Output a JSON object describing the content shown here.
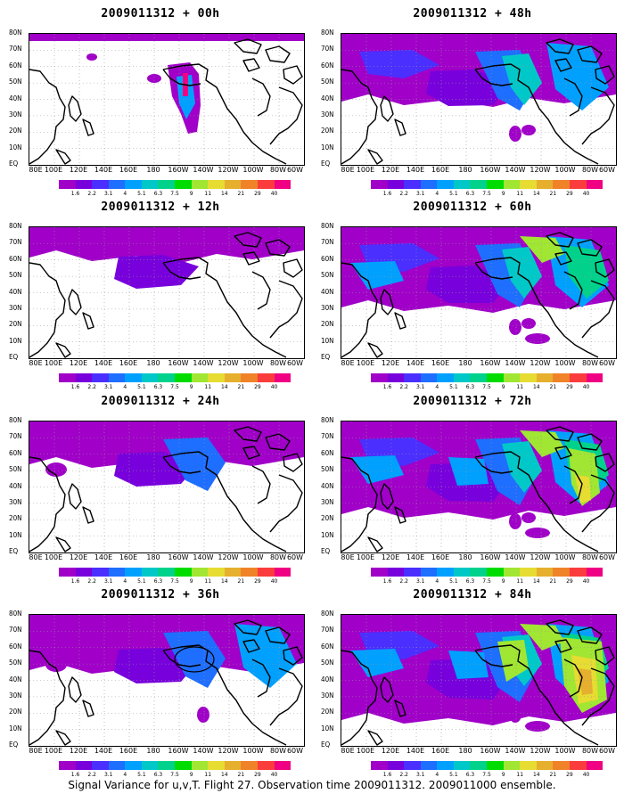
{
  "caption": "Signal Variance for u,v,T. Flight 27. Observation time 2009011312. 2009011000 ensemble.",
  "lat_labels": [
    "80N",
    "70N",
    "60N",
    "50N",
    "40N",
    "30N",
    "20N",
    "10N",
    "EQ"
  ],
  "lon_labels": [
    "80E",
    "100E",
    "120E",
    "140E",
    "160E",
    "180",
    "160W",
    "140W",
    "120W",
    "100W",
    "80W",
    "60W"
  ],
  "colorbar": {
    "levels": [
      "1.6",
      "2.2",
      "3.1",
      "4",
      "5.1",
      "6.3",
      "7.5",
      "9",
      "11",
      "14",
      "21",
      "29",
      "40"
    ],
    "colors": [
      "#a000c8",
      "#7800dc",
      "#4b2fff",
      "#1e6eff",
      "#00a0ff",
      "#00c8c8",
      "#00d28c",
      "#00dc00",
      "#a0e632",
      "#e6dc32",
      "#e6af2d",
      "#f08228",
      "#fa3c3c",
      "#f00082"
    ]
  },
  "panels": [
    {
      "title": "2009011312 + 00h",
      "intensity": 0
    },
    {
      "title": "2009011312 + 48h",
      "intensity": 4
    },
    {
      "title": "2009011312 + 12h",
      "intensity": 1
    },
    {
      "title": "2009011312 + 60h",
      "intensity": 5
    },
    {
      "title": "2009011312 + 24h",
      "intensity": 2
    },
    {
      "title": "2009011312 + 72h",
      "intensity": 6
    },
    {
      "title": "2009011312 + 36h",
      "intensity": 3
    },
    {
      "title": "2009011312 + 84h",
      "intensity": 7
    }
  ]
}
